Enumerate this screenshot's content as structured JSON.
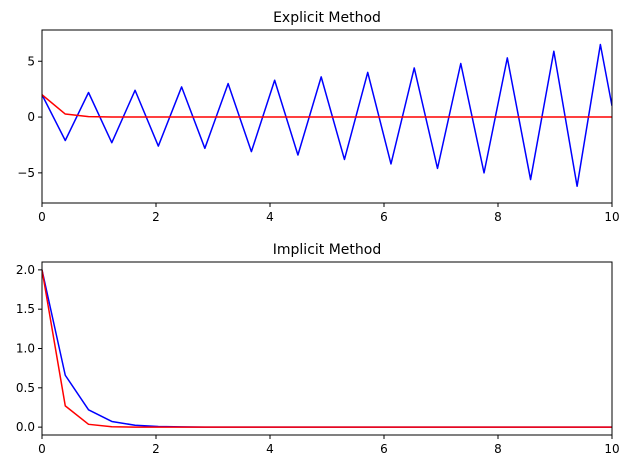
{
  "chart_data": [
    {
      "type": "line",
      "title": "Explicit Method",
      "xlabel": "",
      "ylabel": "",
      "xlim": [
        0,
        10
      ],
      "ylim": [
        -7.7,
        7.8
      ],
      "xticks": [
        0,
        2,
        4,
        6,
        8,
        10
      ],
      "yticks": [
        5,
        0,
        -5
      ],
      "grid": false,
      "series": [
        {
          "color": "#0000ff",
          "x": [
            0,
            0.4082,
            0.8163,
            1.2245,
            1.6327,
            2.0408,
            2.449,
            2.8571,
            3.2653,
            3.6735,
            4.0816,
            4.4898,
            4.898,
            5.3061,
            5.7143,
            6.1224,
            6.5306,
            6.9388,
            7.3469,
            7.7551,
            8.1633,
            8.5714,
            8.9796,
            9.3878,
            9.7959,
            10
          ],
          "y": [
            2.0,
            -2.1,
            2.2,
            -2.3,
            2.4,
            -2.6,
            2.7,
            -2.8,
            3.0,
            -3.1,
            3.3,
            -3.4,
            3.6,
            -3.8,
            4.0,
            -4.2,
            4.4,
            -4.6,
            4.8,
            -5.0,
            5.3,
            -5.6,
            5.9,
            -6.2,
            6.5,
            1.0
          ]
        },
        {
          "color": "#ff0000",
          "x": [
            0,
            0.4082,
            0.8163,
            1.2245,
            1.6327,
            2.0408,
            2.449,
            2.8571,
            3.2653,
            3.6735,
            4.0816,
            4.4898,
            4.898,
            5.3061,
            5.7143,
            6.1224,
            6.5306,
            6.9388,
            7.3469,
            7.7551,
            8.1633,
            8.5714,
            8.9796,
            9.3878,
            9.7959,
            10
          ],
          "y": [
            2.0,
            0.27,
            0.036,
            0.005,
            0.0007,
            0.0001,
            0,
            0,
            0,
            0,
            0,
            0,
            0,
            0,
            0,
            0,
            0,
            0,
            0,
            0,
            0,
            0,
            0,
            0,
            0,
            0
          ]
        }
      ]
    },
    {
      "type": "line",
      "title": "Implicit Method",
      "xlabel": "",
      "ylabel": "",
      "xlim": [
        0,
        10
      ],
      "ylim": [
        -0.1,
        2.1
      ],
      "xticks": [
        0,
        2,
        4,
        6,
        8,
        10
      ],
      "yticks": [
        2.0,
        1.5,
        1.0,
        0.5,
        0.0
      ],
      "ytick_labels": [
        "2.0",
        "1.5",
        "1.0",
        "0.5",
        "0.0"
      ],
      "grid": false,
      "series": [
        {
          "color": "#0000ff",
          "x": [
            0,
            0.4082,
            0.8163,
            1.2245,
            1.6327,
            2.0408,
            2.449,
            2.8571,
            3.2653,
            3.6735,
            4.0816,
            4.4898,
            4.898,
            5.3061,
            5.7143,
            6.1224,
            6.5306,
            6.9388,
            7.3469,
            7.7551,
            8.1633,
            8.5714,
            8.9796,
            9.3878,
            9.7959,
            10
          ],
          "y": [
            2.0,
            0.66,
            0.22,
            0.072,
            0.024,
            0.008,
            0.0026,
            0.0009,
            0.0003,
            0.0001,
            0,
            0,
            0,
            0,
            0,
            0,
            0,
            0,
            0,
            0,
            0,
            0,
            0,
            0,
            0,
            0
          ]
        },
        {
          "color": "#ff0000",
          "x": [
            0,
            0.4082,
            0.8163,
            1.2245,
            1.6327,
            2.0408,
            2.449,
            2.8571,
            3.2653,
            3.6735,
            4.0816,
            4.4898,
            4.898,
            5.3061,
            5.7143,
            6.1224,
            6.5306,
            6.9388,
            7.3469,
            7.7551,
            8.1633,
            8.5714,
            8.9796,
            9.3878,
            9.7959,
            10
          ],
          "y": [
            2.0,
            0.27,
            0.036,
            0.005,
            0.0007,
            0.0001,
            0,
            0,
            0,
            0,
            0,
            0,
            0,
            0,
            0,
            0,
            0,
            0,
            0,
            0,
            0,
            0,
            0,
            0,
            0,
            0
          ]
        }
      ]
    }
  ]
}
